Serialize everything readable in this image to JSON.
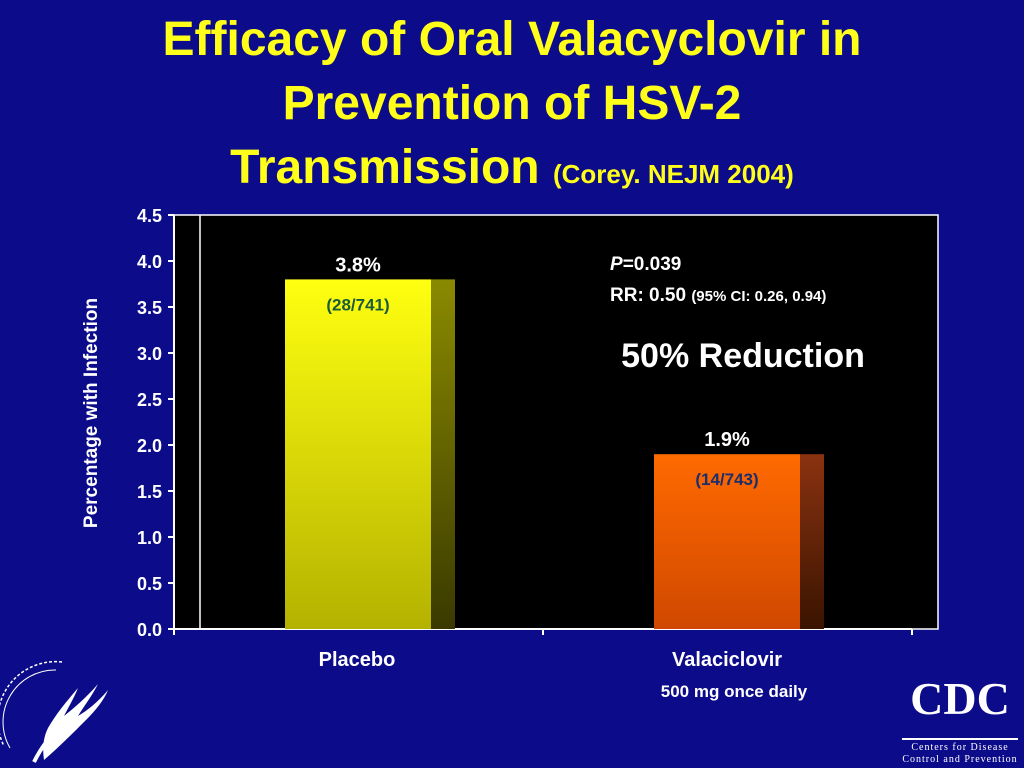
{
  "slide": {
    "title_line1": "Efficacy of Oral Valacyclovir in",
    "title_line2": "Prevention of HSV-2",
    "title_line3": "Transmission",
    "title_citation": "(Corey. NEJM 2004)"
  },
  "chart_data": {
    "type": "bar",
    "ylabel": "Percentage with Infection",
    "ylim": [
      0,
      4.5
    ],
    "yticks": [
      "0.0",
      "0.5",
      "1.0",
      "1.5",
      "2.0",
      "2.5",
      "3.0",
      "3.5",
      "4.0",
      "4.5"
    ],
    "categories": [
      "Placebo",
      "Valaciclovir"
    ],
    "category_sublabels": [
      "",
      "500 mg once daily"
    ],
    "values": [
      3.8,
      1.9
    ],
    "value_labels": [
      "3.8%",
      "1.9%"
    ],
    "count_labels": [
      "(28/741)",
      "(14/743)"
    ],
    "bar_colors": [
      "#e8e610",
      "#f06010"
    ],
    "annotations": {
      "p_label": "P",
      "p_value": "=0.039",
      "rr_main": "RR: 0.50",
      "rr_ci": "(95% CI: 0.26, 0.94)",
      "reduction": "50% Reduction"
    },
    "colors": {
      "plot_bg": "#000000",
      "text": "#ffffff",
      "count_placebo": "#1a5c3a",
      "count_valaciclovir": "#1a2e6e"
    }
  },
  "logos": {
    "cdc_mark": "CDC",
    "cdc_line1": "Centers for Disease",
    "cdc_line2": "Control and Prevention",
    "hhs_icon": "hhs-eagle-seal"
  }
}
